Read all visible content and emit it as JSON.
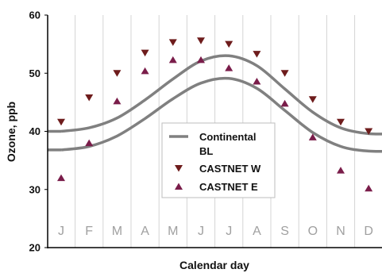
{
  "chart_data": {
    "type": "line",
    "xlabel": "Calendar day",
    "ylabel": "Ozone, ppb",
    "ylim": [
      20,
      60
    ],
    "yticks": [
      "20",
      "30",
      "40",
      "50",
      "60"
    ],
    "months": [
      "J",
      "F",
      "M",
      "A",
      "M",
      "J",
      "J",
      "A",
      "S",
      "O",
      "N",
      "D"
    ],
    "grid": "vertical",
    "legend": {
      "placement": "center-right",
      "continental_label_lines": [
        "Continental",
        "BL"
      ],
      "castnet_w_label": "CASTNET W",
      "castnet_e_label": "CASTNET E"
    },
    "series": [
      {
        "name": "Continental BL",
        "kind": "band",
        "upper": [
          40.0,
          40.6,
          42.3,
          45.4,
          49.0,
          52.1,
          53.0,
          51.3,
          47.3,
          43.3,
          40.6,
          39.6,
          39.6
        ],
        "lower": [
          36.8,
          37.4,
          39.2,
          42.2,
          45.6,
          48.3,
          49.1,
          47.4,
          43.6,
          39.8,
          37.4,
          36.6,
          36.6
        ],
        "x": [
          1,
          2,
          3,
          4,
          5,
          6,
          7,
          8,
          9,
          10,
          11,
          12,
          13
        ],
        "color": "#808080"
      },
      {
        "name": "CASTNET W",
        "marker": "triangle-down",
        "color": "#6e1c1c",
        "x": [
          1,
          2,
          3,
          4,
          5,
          6,
          7,
          8,
          9,
          10,
          11,
          12
        ],
        "values": [
          41.6,
          45.8,
          50.0,
          53.5,
          55.3,
          55.6,
          55.0,
          53.3,
          50.0,
          45.5,
          41.6,
          40.0
        ]
      },
      {
        "name": "CASTNET E",
        "marker": "triangle-up",
        "color": "#7a1d4a",
        "x": [
          1,
          2,
          3,
          4,
          5,
          6,
          7,
          8,
          9,
          10,
          11,
          12
        ],
        "values": [
          32.0,
          38.0,
          45.2,
          50.4,
          52.3,
          52.3,
          50.9,
          48.6,
          44.8,
          39.0,
          33.3,
          30.2
        ]
      }
    ]
  }
}
